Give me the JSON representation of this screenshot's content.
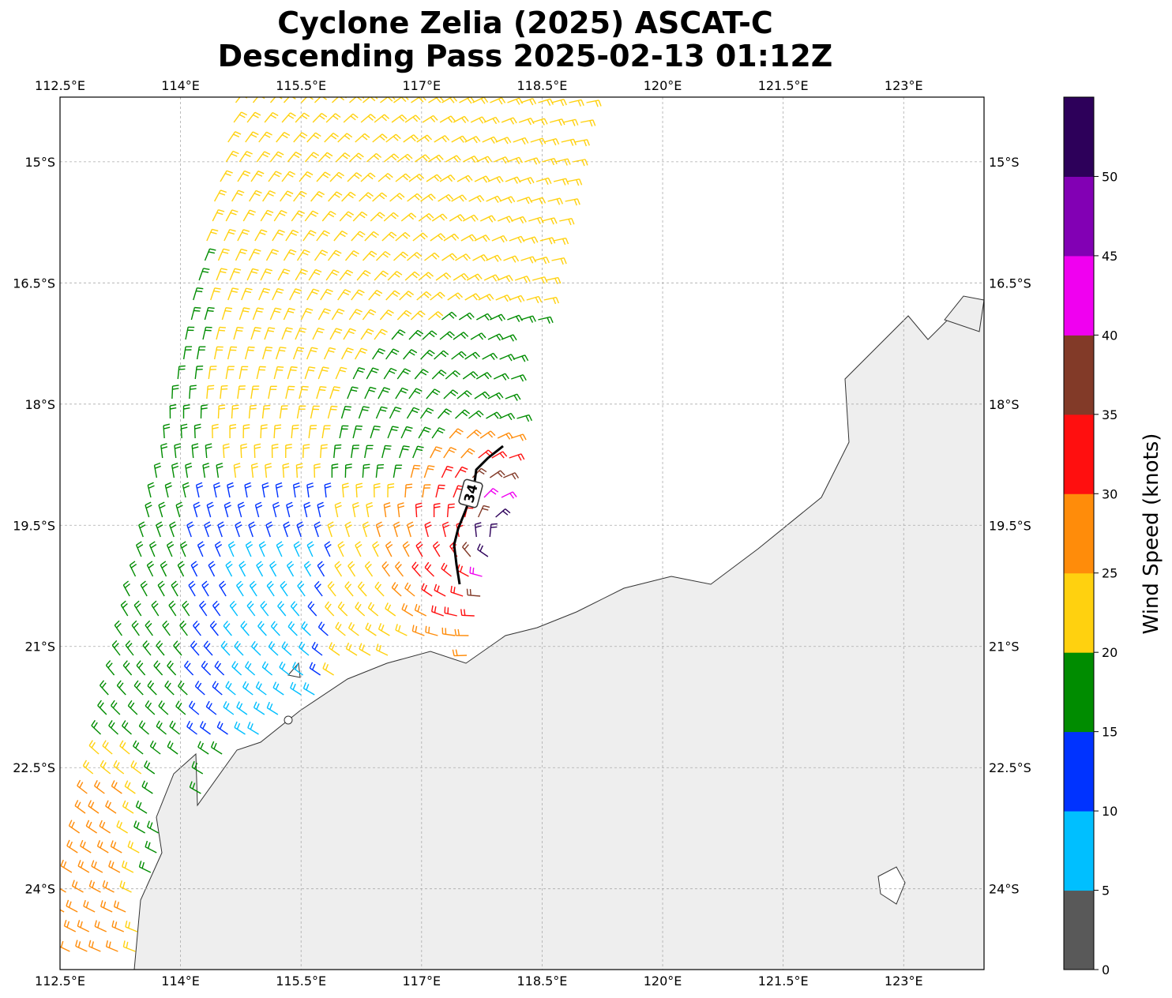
{
  "title_line1": "Cyclone Zelia (2025) ASCAT-C",
  "title_line2": "Descending Pass 2025-02-13 01:12Z",
  "lon_ticks": [
    "112.5°E",
    "114°E",
    "115.5°E",
    "117°E",
    "118.5°E",
    "120°E",
    "121.5°E",
    "123°E"
  ],
  "lat_ticks": [
    "15°S",
    "16.5°S",
    "18°S",
    "19.5°S",
    "21°S",
    "22.5°S",
    "24°S"
  ],
  "contour_label": "34",
  "colorbar": {
    "label": "Wind Speed (knots)",
    "ticks": [
      "0",
      "5",
      "10",
      "15",
      "20",
      "25",
      "30",
      "35",
      "40",
      "45",
      "50"
    ],
    "colors": [
      "#595959",
      "#00bfff",
      "#0033ff",
      "#008c00",
      "#ffd10f",
      "#ff8c0a",
      "#ff0f0f",
      "#823a28",
      "#f000f0",
      "#8200b4",
      "#2d005a"
    ]
  },
  "map_data": {
    "type": "wind-barb-map",
    "lon_range": [
      112.5,
      124.0
    ],
    "lat_range": [
      -25.0,
      -14.2
    ],
    "lon_tick_values": [
      112.5,
      114.0,
      115.5,
      117.0,
      118.5,
      120.0,
      121.5,
      123.0
    ],
    "lat_tick_values": [
      -15.0,
      -16.5,
      -18.0,
      -19.5,
      -21.0,
      -22.5,
      -24.0
    ],
    "gridlines": true,
    "colorbar_placement": "right",
    "contour_value_knots": 34
  }
}
